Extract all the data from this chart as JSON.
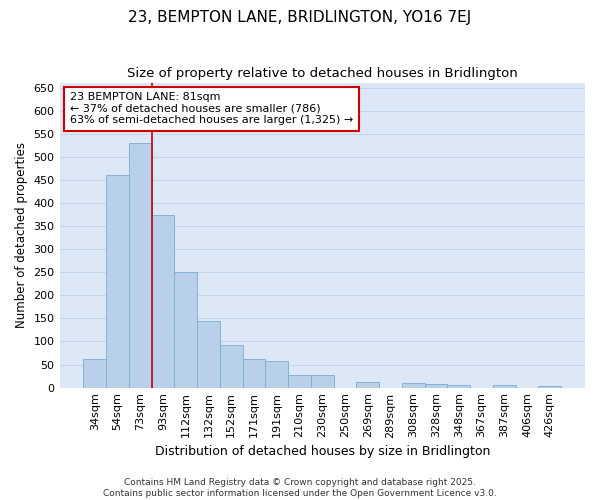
{
  "title": "23, BEMPTON LANE, BRIDLINGTON, YO16 7EJ",
  "subtitle": "Size of property relative to detached houses in Bridlington",
  "xlabel": "Distribution of detached houses by size in Bridlington",
  "ylabel": "Number of detached properties",
  "categories": [
    "34sqm",
    "54sqm",
    "73sqm",
    "93sqm",
    "112sqm",
    "132sqm",
    "152sqm",
    "171sqm",
    "191sqm",
    "210sqm",
    "230sqm",
    "250sqm",
    "269sqm",
    "289sqm",
    "308sqm",
    "328sqm",
    "348sqm",
    "367sqm",
    "387sqm",
    "406sqm",
    "426sqm"
  ],
  "values": [
    62,
    460,
    530,
    375,
    250,
    145,
    93,
    63,
    57,
    27,
    27,
    0,
    12,
    0,
    10,
    8,
    5,
    0,
    5,
    0,
    3
  ],
  "bar_color": "#b8d0ea",
  "bar_edge_color": "#7aadd4",
  "property_line_x": 2.5,
  "property_line_color": "#cc0000",
  "annotation_text": "23 BEMPTON LANE: 81sqm\n← 37% of detached houses are smaller (786)\n63% of semi-detached houses are larger (1,325) →",
  "annotation_box_color": "#cc0000",
  "ylim": [
    0,
    660
  ],
  "yticks": [
    0,
    50,
    100,
    150,
    200,
    250,
    300,
    350,
    400,
    450,
    500,
    550,
    600,
    650
  ],
  "grid_color": "#c5d5e8",
  "background_color": "#dce8f5",
  "fig_background_color": "#ffffff",
  "footer": "Contains HM Land Registry data © Crown copyright and database right 2025.\nContains public sector information licensed under the Open Government Licence v3.0.",
  "title_fontsize": 11,
  "subtitle_fontsize": 9.5,
  "xlabel_fontsize": 9,
  "ylabel_fontsize": 8.5,
  "tick_fontsize": 8,
  "annotation_fontsize": 8,
  "footer_fontsize": 6.5
}
